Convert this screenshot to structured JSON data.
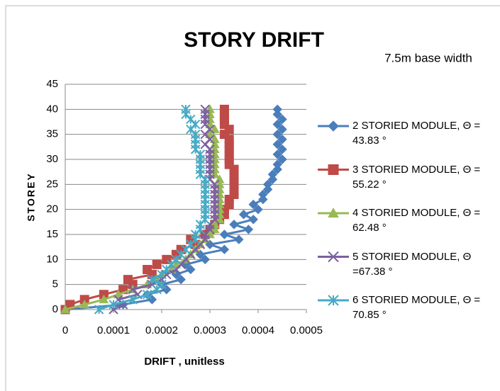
{
  "chart_data": {
    "type": "line",
    "title": "STORY DRIFT",
    "subtitle": "7.5m base width",
    "x_label": "DRIFT , unitless",
    "y_label": "STOREY",
    "xlim": [
      0,
      0.0005
    ],
    "xticks": [
      0,
      0.0001,
      0.0002,
      0.0003,
      0.0004,
      0.0005
    ],
    "ylim": [
      0,
      45
    ],
    "yticks": [
      0,
      5,
      10,
      15,
      20,
      25,
      30,
      35,
      40,
      45
    ],
    "grid": true,
    "legend": "right",
    "y": [
      0,
      1,
      2,
      3,
      4,
      5,
      6,
      7,
      8,
      9,
      10,
      11,
      12,
      13,
      14,
      15,
      16,
      17,
      18,
      19,
      20,
      21,
      22,
      23,
      24,
      25,
      26,
      27,
      28,
      29,
      30,
      31,
      32,
      33,
      34,
      35,
      36,
      37,
      38,
      39,
      40
    ],
    "series": [
      {
        "name": "2 STORIED MODULE, Θ = 43.83 °",
        "color": "#4a7ebb",
        "marker": "diamond",
        "x": [
          0,
          0.00012,
          0.00018,
          0.00017,
          0.00021,
          0.0002,
          0.00024,
          0.00023,
          0.00026,
          0.00025,
          0.00029,
          0.00028,
          0.00033,
          0.0003,
          0.00036,
          0.00033,
          0.00038,
          0.00035,
          0.00039,
          0.00037,
          0.0004,
          0.00039,
          0.00041,
          0.00041,
          0.00042,
          0.00042,
          0.00043,
          0.00043,
          0.00044,
          0.00044,
          0.00045,
          0.00044,
          0.00045,
          0.00044,
          0.00045,
          0.00044,
          0.00045,
          0.00044,
          0.00045,
          0.00044,
          0.00044
        ]
      },
      {
        "name": "3 STORIED MODULE, Θ = 55.22 °",
        "color": "#be4b48",
        "marker": "square",
        "x": [
          0,
          1e-05,
          4e-05,
          8e-05,
          0.00012,
          0.00014,
          0.00013,
          0.00018,
          0.00017,
          0.00019,
          0.00021,
          0.00023,
          0.00024,
          0.00027,
          0.00026,
          0.00029,
          0.0003,
          0.00031,
          0.00032,
          0.00033,
          0.00033,
          0.00034,
          0.00034,
          0.00035,
          0.00035,
          0.00035,
          0.00035,
          0.00035,
          0.00035,
          0.00034,
          0.00034,
          0.00034,
          0.00034,
          0.00034,
          0.00034,
          0.00033,
          0.00034,
          0.00033,
          0.00033,
          0.00033,
          0.00033
        ]
      },
      {
        "name": "4 STORIED MODULE, Θ = 62.48 °",
        "color": "#98b954",
        "marker": "triangle",
        "x": [
          0,
          4e-05,
          8e-05,
          0.00011,
          0.00014,
          0.00017,
          0.00019,
          0.0002,
          0.00022,
          0.00023,
          0.00025,
          0.00026,
          0.00027,
          0.00028,
          0.00029,
          0.0003,
          0.00031,
          0.00031,
          0.00032,
          0.00032,
          0.00032,
          0.00032,
          0.00032,
          0.00032,
          0.00032,
          0.00032,
          0.00032,
          0.00031,
          0.00031,
          0.00031,
          0.00031,
          0.00031,
          0.00031,
          0.00031,
          0.00031,
          0.0003,
          0.00031,
          0.0003,
          0.0003,
          0.0003,
          0.0003
        ]
      },
      {
        "name": "5 STORIED MODULE, Θ =67.38 °",
        "color": "#7d60a0",
        "marker": "x",
        "x": [
          0.0001,
          0.00012,
          0.00011,
          0.00015,
          0.00014,
          0.00018,
          0.0002,
          0.00021,
          0.00023,
          0.00024,
          0.00025,
          0.00026,
          0.00027,
          0.00028,
          0.00029,
          0.00029,
          0.0003,
          0.0003,
          0.00031,
          0.00031,
          0.00031,
          0.00031,
          0.00031,
          0.00031,
          0.00031,
          0.00031,
          0.0003,
          0.0003,
          0.0003,
          0.0003,
          0.0003,
          0.0003,
          0.0003,
          0.00029,
          0.0003,
          0.00029,
          0.0003,
          0.00029,
          0.00029,
          0.00029,
          0.00029
        ]
      },
      {
        "name": "6 STORIED MODULE, Θ = 70.85 °",
        "color": "#46aac5",
        "marker": "star",
        "x": [
          7e-05,
          0.0001,
          0.00014,
          0.00017,
          0.00019,
          0.0002,
          0.00018,
          0.0002,
          0.00021,
          0.00022,
          0.00023,
          0.00024,
          0.00025,
          0.00026,
          0.00027,
          0.00027,
          0.00028,
          0.00028,
          0.00029,
          0.00029,
          0.00029,
          0.00029,
          0.00029,
          0.00029,
          0.00029,
          0.00029,
          0.00029,
          0.00028,
          0.00028,
          0.00028,
          0.00028,
          0.00028,
          0.00027,
          0.00027,
          0.00027,
          0.00027,
          0.00026,
          0.00027,
          0.00026,
          0.00025,
          0.00025
        ]
      }
    ]
  }
}
